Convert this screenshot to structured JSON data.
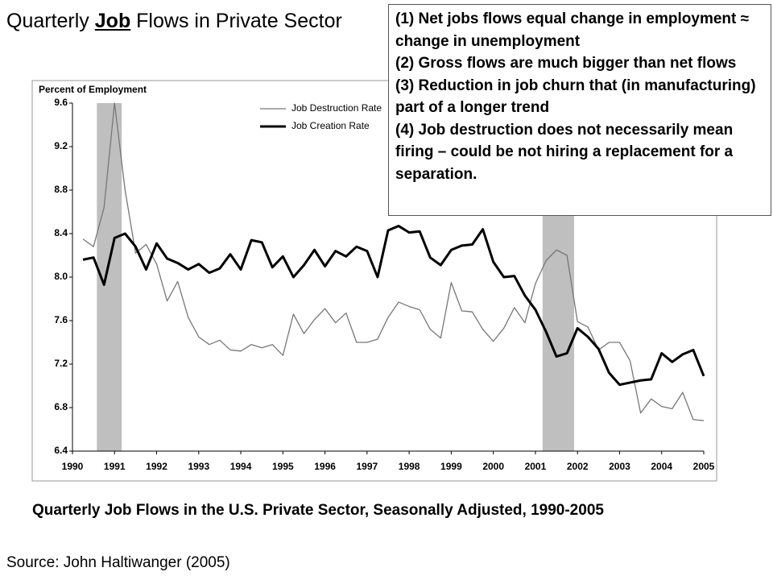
{
  "slide": {
    "title": [
      "Quarterly ",
      "Job",
      " Flows in Private Sector"
    ],
    "notes": [
      "(1) Net jobs flows equal change in employment ≈ change in unemployment",
      "(2) Gross flows are much bigger than net flows",
      "(3) Reduction in job churn that (in manufacturing) part of a longer trend",
      "(4) Job destruction does not necessarily mean firing – could be not hiring a replacement for a separation."
    ],
    "caption": "Quarterly Job Flows in the U.S. Private Sector, Seasonally Adjusted, 1990-2005",
    "source": "Source: John Haltiwanger (2005)"
  },
  "chart_data": {
    "type": "line",
    "ylabel": "Percent of Employment",
    "x": [
      1990.25,
      1990.5,
      1990.75,
      1991,
      1991.25,
      1991.5,
      1991.75,
      1992,
      1992.25,
      1992.5,
      1992.75,
      1993,
      1993.25,
      1993.5,
      1993.75,
      1994,
      1994.25,
      1994.5,
      1994.75,
      1995,
      1995.25,
      1995.5,
      1995.75,
      1996,
      1996.25,
      1996.5,
      1996.75,
      1997,
      1997.25,
      1997.5,
      1997.75,
      1998,
      1998.25,
      1998.5,
      1998.75,
      1999,
      1999.25,
      1999.5,
      1999.75,
      2000,
      2000.25,
      2000.5,
      2000.75,
      2001,
      2001.25,
      2001.5,
      2001.75,
      2002,
      2002.25,
      2002.5,
      2002.75,
      2003,
      2003.25,
      2003.5,
      2003.75,
      2004,
      2004.25,
      2004.5,
      2004.75,
      2005
    ],
    "series": [
      {
        "name": "Job Destruction Rate",
        "color": "#777777",
        "width": 1.3,
        "values": [
          8.35,
          8.28,
          8.64,
          9.6,
          8.8,
          8.22,
          8.3,
          8.12,
          7.78,
          7.96,
          7.63,
          7.45,
          7.38,
          7.42,
          7.33,
          7.32,
          7.38,
          7.35,
          7.38,
          7.28,
          7.66,
          7.48,
          7.61,
          7.71,
          7.58,
          7.67,
          7.4,
          7.4,
          7.43,
          7.63,
          7.77,
          7.73,
          7.7,
          7.52,
          7.44,
          7.95,
          7.69,
          7.68,
          7.52,
          7.41,
          7.53,
          7.72,
          7.58,
          7.94,
          8.15,
          8.25,
          8.2,
          7.59,
          7.54,
          7.33,
          7.4,
          7.4,
          7.23,
          6.75,
          6.88,
          6.81,
          6.79,
          6.94,
          6.69,
          6.68
        ]
      },
      {
        "name": "Job Creation Rate",
        "color": "#000000",
        "width": 3,
        "values": [
          8.16,
          8.18,
          7.93,
          8.36,
          8.4,
          8.28,
          8.07,
          8.31,
          8.17,
          8.13,
          8.07,
          8.12,
          8.04,
          8.08,
          8.21,
          8.07,
          8.34,
          8.32,
          8.09,
          8.19,
          8.0,
          8.11,
          8.25,
          8.1,
          8.24,
          8.19,
          8.28,
          8.24,
          8.0,
          8.43,
          8.47,
          8.41,
          8.42,
          8.18,
          8.11,
          8.25,
          8.29,
          8.3,
          8.44,
          8.14,
          8.0,
          8.01,
          7.83,
          7.7,
          7.5,
          7.27,
          7.3,
          7.53,
          7.45,
          7.34,
          7.12,
          7.01,
          7.03,
          7.05,
          7.06,
          7.3,
          7.22,
          7.29,
          7.33,
          7.09
        ]
      }
    ],
    "shaded": [
      [
        1990.58,
        1991.17
      ],
      [
        2001.17,
        2001.92
      ]
    ],
    "shade_color": "#bfbfbf",
    "xlim": [
      1990,
      2005
    ],
    "xticks": [
      1990,
      1991,
      1992,
      1993,
      1994,
      1995,
      1996,
      1997,
      1998,
      1999,
      2000,
      2001,
      2002,
      2003,
      2004,
      2005
    ],
    "ylim": [
      6.4,
      9.6
    ],
    "yticks": [
      6.4,
      6.8,
      7.2,
      7.6,
      {
        "value": 8,
        "label": "8.0"
      },
      8.4,
      8.8,
      9.2,
      9.6
    ],
    "legend": "upper center"
  }
}
